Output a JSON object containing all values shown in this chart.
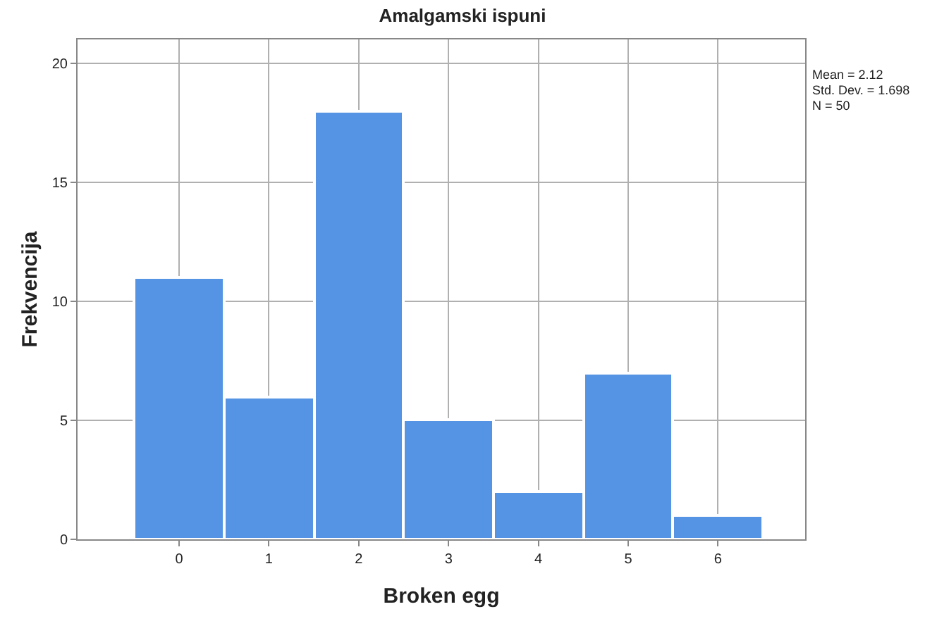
{
  "chart_data": {
    "type": "histogram",
    "title": "Amalgamski ispuni",
    "xlabel": "Broken egg",
    "ylabel": "Frekvencija",
    "bins": [
      -0.5,
      0.5,
      1.5,
      2.5,
      3.5,
      4.5,
      5.5,
      6.5
    ],
    "values": [
      11,
      6,
      18,
      5,
      2,
      7,
      1
    ],
    "color": "#5594e4",
    "xlim": [
      -1.13,
      6.97
    ],
    "xticks": [
      0,
      1,
      2,
      3,
      4,
      5,
      6
    ],
    "ylim": [
      0,
      21
    ],
    "yticks": [
      0,
      5,
      10,
      15,
      20
    ],
    "grid": true,
    "legend": false,
    "annotations": [
      "Mean = 2.12",
      "Std. Dev. = 1.698",
      "N = 50"
    ]
  }
}
